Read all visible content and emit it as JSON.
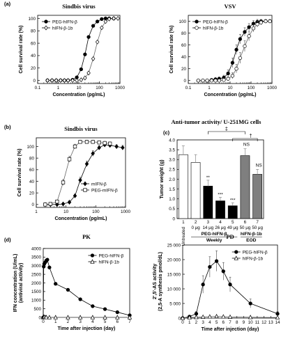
{
  "chart_data": [
    {
      "id": "a-left",
      "panel_label": "(a)",
      "type": "line",
      "title": "Sindbis virus",
      "xlabel": "Concentration (pg/mL)",
      "ylabel": "Cell survival rate (%)",
      "xscale": "log",
      "xlim": [
        0.1,
        1000
      ],
      "ylim": [
        -5,
        105
      ],
      "xticks": [
        0.1,
        1,
        10,
        100,
        1000
      ],
      "xtick_labels": [
        "0.1",
        "1",
        "10",
        "100",
        "1000"
      ],
      "yticks": [
        0,
        20,
        40,
        60,
        80,
        100
      ],
      "ytick_labels": [
        "0",
        "20",
        "40",
        "60",
        "80",
        "100"
      ],
      "legend": "top-left",
      "series": [
        {
          "name": "PEG-hIFN-β",
          "marker": "filled-circle",
          "x": [
            0.3,
            0.5,
            0.8,
            1.3,
            2,
            3,
            5,
            8,
            13,
            20,
            30,
            50,
            80,
            130,
            200,
            300,
            500
          ],
          "y": [
            0,
            0,
            0,
            0,
            0,
            0,
            1,
            5,
            18,
            42,
            70,
            88,
            95,
            99,
            100,
            100,
            100
          ]
        },
        {
          "name": "hIFN-β-1b",
          "marker": "open-diamond",
          "x": [
            0.3,
            0.5,
            0.8,
            1.3,
            2,
            3,
            5,
            8,
            13,
            20,
            30,
            50,
            80,
            130,
            200,
            300,
            500,
            800
          ],
          "y": [
            0,
            0,
            0,
            0,
            0,
            0,
            0,
            0,
            1,
            4,
            12,
            35,
            62,
            85,
            95,
            99,
            100,
            100
          ]
        }
      ]
    },
    {
      "id": "a-right",
      "type": "line",
      "title": "VSV",
      "xlabel": "Concentration (pg/mL)",
      "ylabel": "Cell survival rate (%)",
      "xscale": "log",
      "xlim": [
        0.1,
        1000
      ],
      "ylim": [
        -5,
        110
      ],
      "xticks": [
        0.1,
        1,
        10,
        100,
        1000
      ],
      "xtick_labels": [
        "0.1",
        "1",
        "10",
        "100",
        "1000"
      ],
      "yticks": [
        0,
        20,
        40,
        60,
        80,
        100
      ],
      "ytick_labels": [
        "0",
        "20",
        "40",
        "60",
        "80",
        "100"
      ],
      "legend": "top-left",
      "series": [
        {
          "name": "PEG-hIFN-β",
          "marker": "filled-circle",
          "x": [
            0.3,
            0.5,
            0.8,
            1.3,
            2,
            3,
            5,
            8,
            13,
            20,
            30,
            50,
            80,
            130,
            200,
            300,
            500,
            800
          ],
          "y": [
            0,
            0,
            0,
            1,
            2,
            3,
            5,
            12,
            30,
            52,
            70,
            82,
            90,
            96,
            99,
            100,
            100,
            100
          ],
          "err": [
            0,
            0,
            0,
            2,
            3,
            3,
            4,
            6,
            8,
            8,
            8,
            7,
            6,
            5,
            4,
            3,
            3,
            3
          ]
        },
        {
          "name": "hIFN-β-1b",
          "marker": "open-circle",
          "x": [
            0.3,
            0.5,
            0.8,
            1.3,
            2,
            3,
            5,
            8,
            13,
            20,
            30,
            50,
            80,
            130,
            200,
            300,
            500,
            800
          ],
          "y": [
            0,
            0,
            0,
            0,
            0,
            0,
            1,
            3,
            8,
            20,
            38,
            58,
            75,
            88,
            95,
            98,
            100,
            100
          ],
          "err": [
            0,
            0,
            0,
            0,
            0,
            2,
            3,
            3,
            5,
            7,
            9,
            9,
            8,
            6,
            5,
            4,
            3,
            3
          ]
        }
      ]
    },
    {
      "id": "b",
      "panel_label": "(b)",
      "type": "line",
      "title": "Sindbis virus",
      "xlabel": "Concentration (pg/mL)",
      "ylabel": "Cell survival rate (%)",
      "xscale": "log",
      "xlim": [
        1,
        1000
      ],
      "ylim": [
        -5,
        115
      ],
      "xticks": [
        1,
        10,
        100,
        1000
      ],
      "xtick_labels": [
        "1",
        "10",
        "100",
        "1000"
      ],
      "yticks": [
        0,
        20,
        40,
        60,
        80,
        100
      ],
      "ytick_labels": [
        "0",
        "20",
        "40",
        "60",
        "80",
        "100"
      ],
      "legend": "bottom-right",
      "series": [
        {
          "name": "mIFN-β",
          "marker": "filled-diamond",
          "x": [
            2,
            3,
            5,
            8,
            13,
            20,
            30,
            50,
            80,
            130,
            200,
            300,
            500,
            800
          ],
          "y": [
            0,
            0,
            0,
            1,
            4,
            15,
            42,
            70,
            88,
            98,
            103,
            102,
            100,
            98
          ],
          "err": [
            0,
            0,
            0,
            1,
            2,
            3,
            5,
            5,
            5,
            4,
            3,
            3,
            3,
            4
          ]
        },
        {
          "name": "PEG-mIFN-β",
          "marker": "open-square",
          "x": [
            2,
            3,
            5,
            8,
            13,
            20,
            30,
            50,
            80,
            130,
            200,
            300
          ],
          "y": [
            0,
            1,
            5,
            38,
            78,
            100,
            108,
            108,
            108,
            107,
            106,
            105
          ],
          "err": [
            0,
            1,
            3,
            5,
            5,
            4,
            3,
            3,
            3,
            3,
            3,
            3
          ]
        }
      ]
    },
    {
      "id": "c",
      "panel_label": "(c)",
      "type": "bar",
      "title": "Anti-tumor activity/ U-251MG cells",
      "ylabel": "Tumor weight (g)",
      "ylim": [
        0,
        4.0
      ],
      "yticks": [
        0,
        0.5,
        1.0,
        1.5,
        2.0,
        2.5,
        3.0,
        3.5,
        4.0
      ],
      "ytick_labels": [
        "0",
        "0.5",
        "1.0",
        "1.5",
        "2.0",
        "2.5",
        "3.0",
        "3.5",
        "4.0"
      ],
      "categories": [
        "1",
        "2",
        "3",
        "4",
        "5",
        "6",
        "7"
      ],
      "doses": [
        "Untreated",
        "0 μg",
        "14 μg",
        "26 μg",
        "49 μg",
        "50 μg",
        "50 μg"
      ],
      "values": [
        3.25,
        2.85,
        1.65,
        0.9,
        0.65,
        3.2,
        2.25
      ],
      "errors": [
        0.45,
        0.4,
        0.3,
        0.18,
        0.15,
        0.35,
        0.25
      ],
      "fills": [
        "#ffffff",
        "#ffffff",
        "#000000",
        "#000000",
        "#000000",
        "#7f7f7f",
        "#7f7f7f"
      ],
      "significance": [
        "",
        "",
        "**",
        "***",
        "***",
        "NS",
        "NS"
      ],
      "group_labels": [
        {
          "text": "PEG-hIFN-β",
          "from": 2,
          "to": 5
        },
        {
          "text": "hIFN-β-1b",
          "from": 6,
          "to": 7
        }
      ],
      "schedule_labels": [
        {
          "text": "Weekly",
          "from": 2,
          "to": 5
        },
        {
          "text": "EOD",
          "from": 6,
          "to": 7
        }
      ],
      "brackets": [
        {
          "symbol": "‡",
          "from": 3,
          "to": 6
        },
        {
          "symbol": "†",
          "from": 5,
          "to": 7
        }
      ]
    },
    {
      "id": "d-left",
      "panel_label": "(d)",
      "type": "line",
      "title": "PK",
      "xlabel": "Time after injection (day)",
      "ylabel": "IFN concentration (U/mL)\n(antiviral activity)",
      "xlim": [
        0,
        7
      ],
      "ylim": [
        0,
        4000
      ],
      "xticks": [
        0,
        1,
        2,
        3,
        4,
        5,
        6,
        7
      ],
      "xtick_labels": [
        "0",
        "1",
        "2",
        "3",
        "4",
        "5",
        "6",
        "7"
      ],
      "yticks": [
        0,
        500,
        1000,
        1500,
        2000,
        2500,
        3000,
        3500,
        4000
      ],
      "ytick_labels": [
        "0",
        "500",
        "1000",
        "1500",
        "2000",
        "2500",
        "3000",
        "3500",
        "4000"
      ],
      "legend": "top-right",
      "series": [
        {
          "name": "PEG-hIFN-β",
          "marker": "filled-circle",
          "x": [
            0,
            0.04,
            0.08,
            0.17,
            0.25,
            0.33,
            0.5,
            1,
            2,
            3,
            4,
            5,
            6,
            7
          ],
          "y": [
            0,
            2950,
            3100,
            3200,
            3300,
            3350,
            2900,
            1950,
            1600,
            1050,
            650,
            480,
            300,
            120
          ]
        },
        {
          "name": "hIFN-β-1b",
          "marker": "open-triangle",
          "x": [
            0,
            0.04,
            0.08,
            0.17,
            0.25,
            0.5,
            1,
            2,
            3,
            4,
            5,
            6,
            7
          ],
          "y": [
            0,
            30,
            20,
            10,
            5,
            0,
            0,
            0,
            0,
            0,
            0,
            0,
            0
          ]
        }
      ]
    },
    {
      "id": "d-right",
      "type": "line",
      "title": "PD",
      "xlabel": "Time after injection (day)",
      "ylabel": "2',5'-AS activity\n(2,5-A synthesis pmol/dL)",
      "xlim": [
        0,
        14
      ],
      "ylim": [
        0,
        25000
      ],
      "xticks": [
        0,
        1,
        2,
        3,
        4,
        5,
        6,
        7,
        8,
        9,
        10,
        11,
        12,
        13,
        14
      ],
      "xtick_labels": [
        "0",
        "1",
        "2",
        "3",
        "4",
        "5",
        "6",
        "7",
        "8",
        "9",
        "10",
        "11",
        "12",
        "13",
        "14"
      ],
      "yticks": [
        0,
        5000,
        10000,
        15000,
        20000,
        25000
      ],
      "ytick_labels": [
        "0",
        "5 000",
        "10 000",
        "15 000",
        "20 000",
        "25 000"
      ],
      "legend": "top-right",
      "series": [
        {
          "name": "PEG-hIFN-β",
          "marker": "filled-circle",
          "x": [
            0,
            1,
            2,
            3,
            4,
            5,
            6,
            7,
            10,
            14
          ],
          "y": [
            0,
            500,
            1500,
            11500,
            17500,
            19500,
            16000,
            11500,
            5000,
            1500
          ],
          "err": [
            0,
            300,
            800,
            3000,
            3500,
            3500,
            3000,
            2500,
            1500,
            800
          ]
        },
        {
          "name": "hIFN-β-1b",
          "marker": "open-triangle",
          "x": [
            0,
            1,
            2,
            3,
            4,
            5,
            6,
            7,
            10,
            14
          ],
          "y": [
            0,
            200,
            300,
            400,
            500,
            600,
            500,
            400,
            300,
            200
          ],
          "err": [
            0,
            100,
            100,
            150,
            150,
            150,
            150,
            100,
            100,
            100
          ]
        }
      ]
    }
  ]
}
